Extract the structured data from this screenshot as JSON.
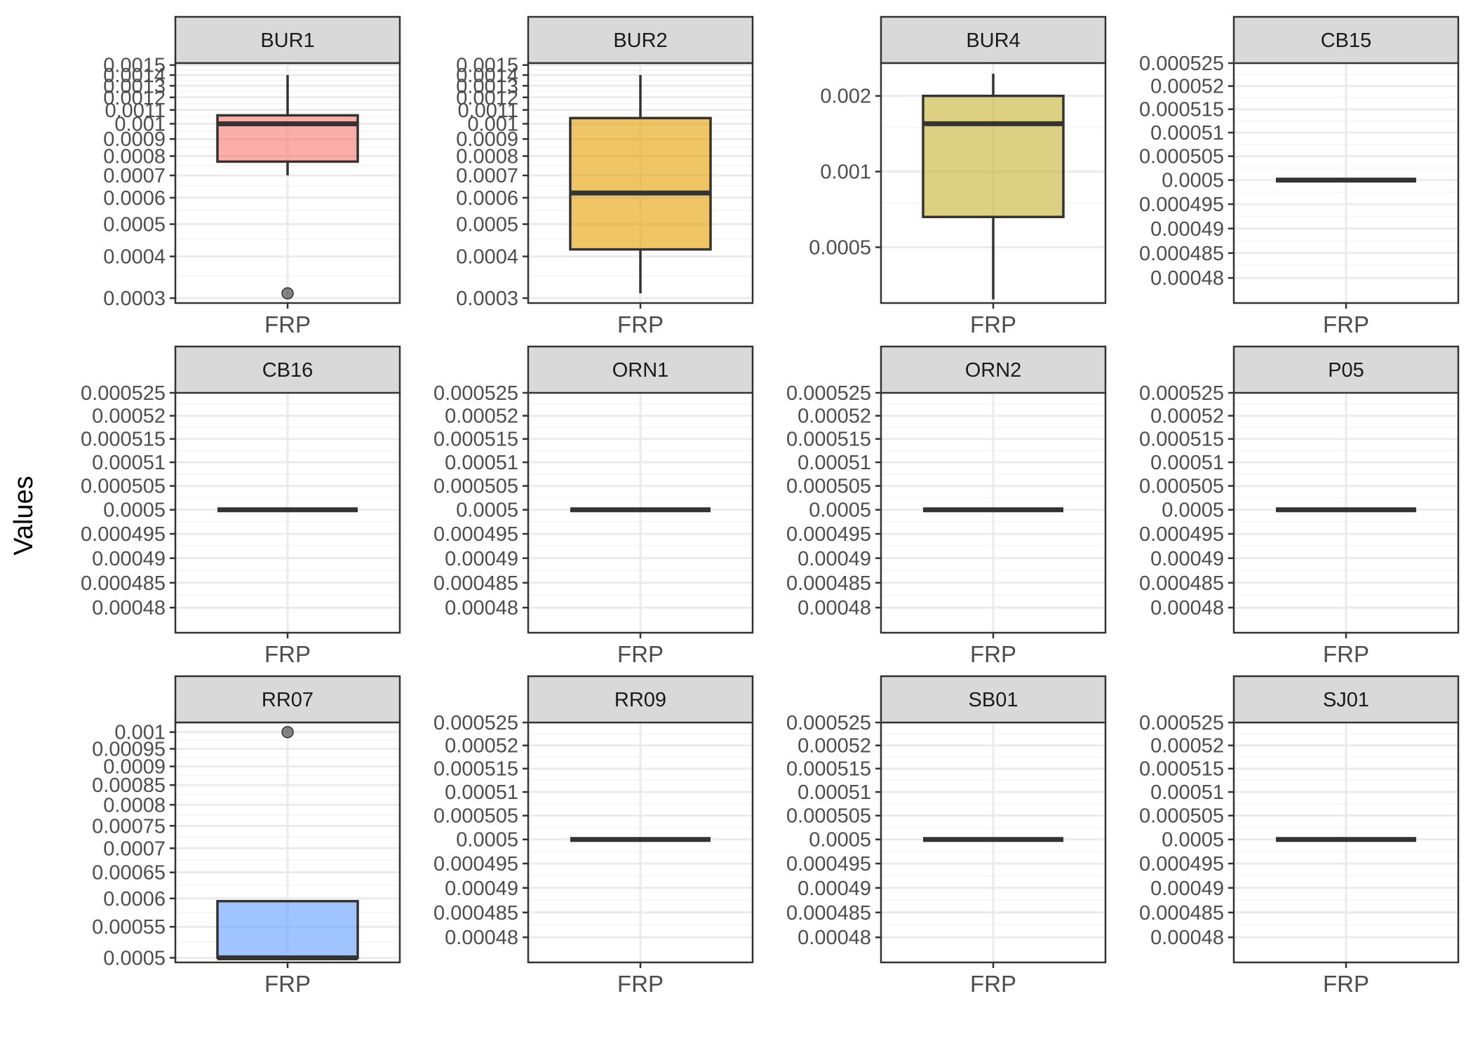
{
  "chart_data": {
    "type": "boxplot",
    "facet_layout": "3 rows x 4 columns",
    "ylabel": "Values",
    "xlabel": "",
    "y_scale": "log10",
    "grid": true,
    "legend": "none",
    "panels": [
      {
        "title": "BUR1",
        "category": "FRP",
        "fill": "#F8766D",
        "ylim": [
          0.00029,
          0.00152
        ],
        "ticks": [
          0.0003,
          0.0004,
          0.0005,
          0.0006,
          0.0007,
          0.0008,
          0.0009,
          0.001,
          0.0011,
          0.0012,
          0.0013,
          0.0014,
          0.0015
        ],
        "tick_labels": [
          "0.0003",
          "0.0004",
          "0.0005",
          "0.0006",
          "0.0007",
          "0.0008",
          "0.0009",
          "0.001",
          "0.0011",
          "0.0012",
          "0.0013",
          "0.0014",
          "0.0015"
        ],
        "box": {
          "lower_whisker": 0.0007,
          "q1": 0.00077,
          "median": 0.001,
          "q3": 0.00106,
          "upper_whisker": 0.0014
        },
        "outliers": [
          0.00031
        ]
      },
      {
        "title": "BUR2",
        "category": "FRP",
        "fill": "#E69F00",
        "ylim": [
          0.00029,
          0.00152
        ],
        "ticks": [
          0.0003,
          0.0004,
          0.0005,
          0.0006,
          0.0007,
          0.0008,
          0.0009,
          0.001,
          0.0011,
          0.0012,
          0.0013,
          0.0014,
          0.0015
        ],
        "tick_labels": [
          "0.0003",
          "0.0004",
          "0.0005",
          "0.0006",
          "0.0007",
          "0.0008",
          "0.0009",
          "0.001",
          "0.0011",
          "0.0012",
          "0.0013",
          "0.0014",
          "0.0015"
        ],
        "box": {
          "lower_whisker": 0.00031,
          "q1": 0.00042,
          "median": 0.00062,
          "q3": 0.00104,
          "upper_whisker": 0.0014
        },
        "outliers": []
      },
      {
        "title": "BUR4",
        "category": "FRP",
        "fill": "#C4B02E",
        "ylim": [
          0.0003,
          0.0027
        ],
        "ticks": [
          0.0005,
          0.001,
          0.002
        ],
        "tick_labels": [
          "0.0005",
          "0.001",
          "0.002"
        ],
        "box": {
          "lower_whisker": 0.00031,
          "q1": 0.00066,
          "median": 0.00155,
          "q3": 0.002,
          "upper_whisker": 0.00245
        },
        "outliers": []
      },
      {
        "title": "CB15",
        "category": "FRP",
        "fill": "#7CAE00",
        "ylim": [
          0.000475,
          0.000525
        ],
        "ticks": [
          0.00048,
          0.000485,
          0.00049,
          0.000495,
          0.0005,
          0.000505,
          0.00051,
          0.000515,
          0.00052,
          0.000525
        ],
        "tick_labels": [
          "0.00048",
          "0.000485",
          "0.00049",
          "0.000495",
          "0.0005",
          "0.000505",
          "0.00051",
          "0.000515",
          "0.00052",
          "0.000525"
        ],
        "box": {
          "lower_whisker": 0.0005,
          "q1": 0.0005,
          "median": 0.0005,
          "q3": 0.0005,
          "upper_whisker": 0.0005
        },
        "outliers": []
      },
      {
        "title": "CB16",
        "category": "FRP",
        "fill": "#00BA38",
        "ylim": [
          0.000475,
          0.000525
        ],
        "ticks": [
          0.00048,
          0.000485,
          0.00049,
          0.000495,
          0.0005,
          0.000505,
          0.00051,
          0.000515,
          0.00052,
          0.000525
        ],
        "tick_labels": [
          "0.00048",
          "0.000485",
          "0.00049",
          "0.000495",
          "0.0005",
          "0.000505",
          "0.00051",
          "0.000515",
          "0.00052",
          "0.000525"
        ],
        "box": {
          "lower_whisker": 0.0005,
          "q1": 0.0005,
          "median": 0.0005,
          "q3": 0.0005,
          "upper_whisker": 0.0005
        },
        "outliers": []
      },
      {
        "title": "ORN1",
        "category": "FRP",
        "fill": "#00BFC4",
        "ylim": [
          0.000475,
          0.000525
        ],
        "ticks": [
          0.00048,
          0.000485,
          0.00049,
          0.000495,
          0.0005,
          0.000505,
          0.00051,
          0.000515,
          0.00052,
          0.000525
        ],
        "tick_labels": [
          "0.00048",
          "0.000485",
          "0.00049",
          "0.000495",
          "0.0005",
          "0.000505",
          "0.00051",
          "0.000515",
          "0.00052",
          "0.000525"
        ],
        "box": {
          "lower_whisker": 0.0005,
          "q1": 0.0005,
          "median": 0.0005,
          "q3": 0.0005,
          "upper_whisker": 0.0005
        },
        "outliers": []
      },
      {
        "title": "ORN2",
        "category": "FRP",
        "fill": "#00B4F0",
        "ylim": [
          0.000475,
          0.000525
        ],
        "ticks": [
          0.00048,
          0.000485,
          0.00049,
          0.000495,
          0.0005,
          0.000505,
          0.00051,
          0.000515,
          0.00052,
          0.000525
        ],
        "tick_labels": [
          "0.00048",
          "0.000485",
          "0.00049",
          "0.000495",
          "0.0005",
          "0.000505",
          "0.00051",
          "0.000515",
          "0.00052",
          "0.000525"
        ],
        "box": {
          "lower_whisker": 0.0005,
          "q1": 0.0005,
          "median": 0.0005,
          "q3": 0.0005,
          "upper_whisker": 0.0005
        },
        "outliers": []
      },
      {
        "title": "P05",
        "category": "FRP",
        "fill": "#619CFF",
        "ylim": [
          0.000475,
          0.000525
        ],
        "ticks": [
          0.00048,
          0.000485,
          0.00049,
          0.000495,
          0.0005,
          0.000505,
          0.00051,
          0.000515,
          0.00052,
          0.000525
        ],
        "tick_labels": [
          "0.00048",
          "0.000485",
          "0.00049",
          "0.000495",
          "0.0005",
          "0.000505",
          "0.00051",
          "0.000515",
          "0.00052",
          "0.000525"
        ],
        "box": {
          "lower_whisker": 0.0005,
          "q1": 0.0005,
          "median": 0.0005,
          "q3": 0.0005,
          "upper_whisker": 0.0005
        },
        "outliers": []
      },
      {
        "title": "RR07",
        "category": "FRP",
        "fill": "#619CFF",
        "ylim": [
          0.000493,
          0.00103
        ],
        "ticks": [
          0.0005,
          0.00055,
          0.0006,
          0.00065,
          0.0007,
          0.00075,
          0.0008,
          0.00085,
          0.0009,
          0.00095,
          0.001
        ],
        "tick_labels": [
          "0.0005",
          "0.00055",
          "0.0006",
          "0.00065",
          "0.0007",
          "0.00075",
          "0.0008",
          "0.00085",
          "0.0009",
          "0.00095",
          "0.001"
        ],
        "box": {
          "lower_whisker": 0.0005,
          "q1": 0.0005,
          "median": 0.0005,
          "q3": 0.000595,
          "upper_whisker": 0.000595
        },
        "outliers": [
          0.001
        ]
      },
      {
        "title": "RR09",
        "category": "FRP",
        "fill": "#C77CFF",
        "ylim": [
          0.000475,
          0.000525
        ],
        "ticks": [
          0.00048,
          0.000485,
          0.00049,
          0.000495,
          0.0005,
          0.000505,
          0.00051,
          0.000515,
          0.00052,
          0.000525
        ],
        "tick_labels": [
          "0.00048",
          "0.000485",
          "0.00049",
          "0.000495",
          "0.0005",
          "0.000505",
          "0.00051",
          "0.000515",
          "0.00052",
          "0.000525"
        ],
        "box": {
          "lower_whisker": 0.0005,
          "q1": 0.0005,
          "median": 0.0005,
          "q3": 0.0005,
          "upper_whisker": 0.0005
        },
        "outliers": []
      },
      {
        "title": "SB01",
        "category": "FRP",
        "fill": "#F564E3",
        "ylim": [
          0.000475,
          0.000525
        ],
        "ticks": [
          0.00048,
          0.000485,
          0.00049,
          0.000495,
          0.0005,
          0.000505,
          0.00051,
          0.000515,
          0.00052,
          0.000525
        ],
        "tick_labels": [
          "0.00048",
          "0.000485",
          "0.00049",
          "0.000495",
          "0.0005",
          "0.000505",
          "0.00051",
          "0.000515",
          "0.00052",
          "0.000525"
        ],
        "box": {
          "lower_whisker": 0.0005,
          "q1": 0.0005,
          "median": 0.0005,
          "q3": 0.0005,
          "upper_whisker": 0.0005
        },
        "outliers": []
      },
      {
        "title": "SJ01",
        "category": "FRP",
        "fill": "#FF64B0",
        "ylim": [
          0.000475,
          0.000525
        ],
        "ticks": [
          0.00048,
          0.000485,
          0.00049,
          0.000495,
          0.0005,
          0.000505,
          0.00051,
          0.000515,
          0.00052,
          0.000525
        ],
        "tick_labels": [
          "0.00048",
          "0.000485",
          "0.00049",
          "0.000495",
          "0.0005",
          "0.000505",
          "0.00051",
          "0.000515",
          "0.00052",
          "0.000525"
        ],
        "box": {
          "lower_whisker": 0.0005,
          "q1": 0.0005,
          "median": 0.0005,
          "q3": 0.0005,
          "upper_whisker": 0.0005
        },
        "outliers": []
      }
    ]
  }
}
